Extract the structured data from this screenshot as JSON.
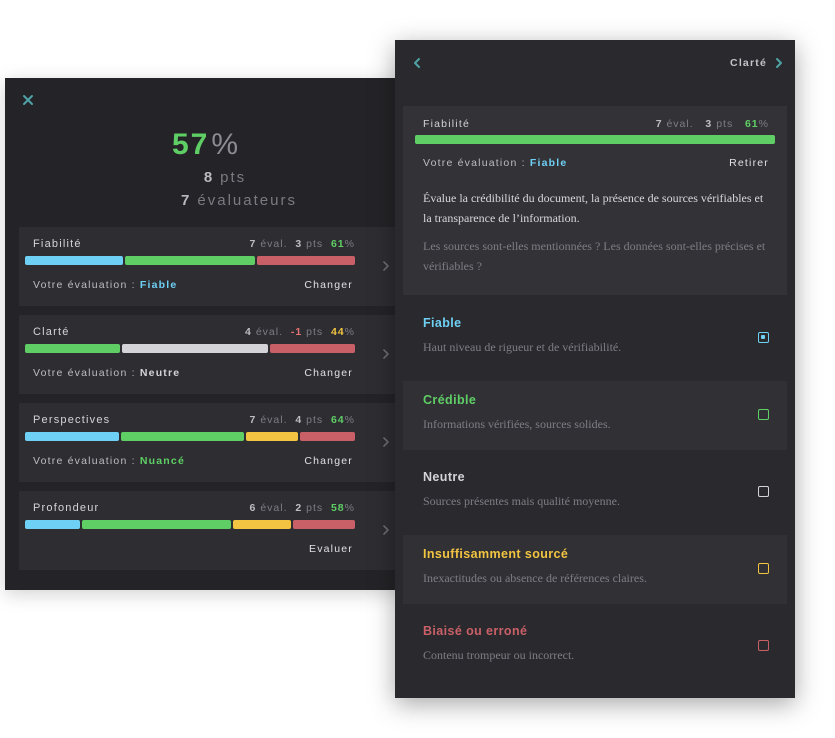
{
  "colors": {
    "blue": "#6fd0f5",
    "green": "#5fcf65",
    "yellow": "#f2c441",
    "red": "#c96067",
    "gray": "#d4d4d8",
    "muted": "#7d7d84"
  },
  "icons": {
    "close": "close-icon",
    "back": "chevron-left-icon",
    "next": "chevron-right-icon"
  },
  "summary": {
    "percent": "57",
    "percent_sign": "%",
    "points_value": "8",
    "points_label": "pts",
    "raters_value": "7",
    "raters_label": "évaluateurs"
  },
  "criteria": [
    {
      "title": "Fiabilité",
      "eval_count": "7",
      "eval_label": "éval.",
      "pts": "3",
      "pts_label": "pts",
      "percent": "61",
      "percent_sign": "%",
      "your_eval_label": "Votre évaluation :",
      "your_eval_value": "Fiable",
      "action": "Changer",
      "segments": [
        {
          "color": "blue",
          "share": 0.3
        },
        {
          "color": "green",
          "share": 0.4
        },
        {
          "color": "red",
          "share": 0.3
        }
      ]
    },
    {
      "title": "Clarté",
      "eval_count": "4",
      "eval_label": "éval.",
      "pts": "-1",
      "pts_label": "pts",
      "percent": "44",
      "percent_sign": "%",
      "your_eval_label": "Votre évaluation :",
      "your_eval_value": "Neutre",
      "action": "Changer",
      "segments": [
        {
          "color": "green",
          "share": 0.29
        },
        {
          "color": "gray",
          "share": 0.45
        },
        {
          "color": "red",
          "share": 0.26
        }
      ]
    },
    {
      "title": "Perspectives",
      "eval_count": "7",
      "eval_label": "éval.",
      "pts": "4",
      "pts_label": "pts",
      "percent": "64",
      "percent_sign": "%",
      "your_eval_label": "Votre évaluation :",
      "your_eval_value": "Nuancé",
      "action": "Changer",
      "segments": [
        {
          "color": "blue",
          "share": 0.29
        },
        {
          "color": "green",
          "share": 0.38
        },
        {
          "color": "yellow",
          "share": 0.16
        },
        {
          "color": "red",
          "share": 0.17
        }
      ]
    },
    {
      "title": "Profondeur",
      "eval_count": "6",
      "eval_label": "éval.",
      "pts": "2",
      "pts_label": "pts",
      "percent": "58",
      "percent_sign": "%",
      "your_eval_label": "",
      "your_eval_value": "",
      "action": "Evaluer",
      "segments": [
        {
          "color": "blue",
          "share": 0.17
        },
        {
          "color": "green",
          "share": 0.46
        },
        {
          "color": "yellow",
          "share": 0.18
        },
        {
          "color": "red",
          "share": 0.19
        }
      ]
    }
  ],
  "detail": {
    "nav_next_label": "Clarté",
    "title": "Fiabilité",
    "eval_count": "7",
    "eval_label": "éval.",
    "pts": "3",
    "pts_label": "pts",
    "percent": "61",
    "percent_sign": "%",
    "progress": 1.0,
    "your_eval_label": "Votre évaluation :",
    "your_eval_value": "Fiable",
    "action": "Retirer",
    "description": "Évalue la crédibilité du document, la présence de sources vérifiables et la transparence de l’information.",
    "question": "Les sources sont-elles mentionnées ? Les données sont-elles précises et vérifiables ?"
  },
  "options": [
    {
      "title": "Fiable",
      "desc": "Haut niveau de rigueur et de vérifiabilité.",
      "color": "blue",
      "selected": true
    },
    {
      "title": "Crédible",
      "desc": "Informations vérifiées, sources solides.",
      "color": "green",
      "selected": false
    },
    {
      "title": "Neutre",
      "desc": "Sources présentes mais qualité moyenne.",
      "color": "gray",
      "selected": false
    },
    {
      "title": "Insuffisamment sourcé",
      "desc": "Inexactitudes ou absence de références claires.",
      "color": "yellow",
      "selected": false
    },
    {
      "title": "Biaisé ou erroné",
      "desc": "Contenu trompeur ou incorrect.",
      "color": "red",
      "selected": false
    }
  ]
}
